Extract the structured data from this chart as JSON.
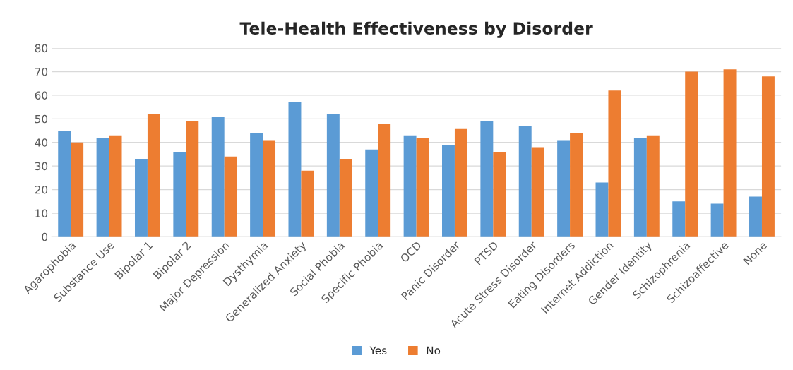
{
  "chart_data": {
    "type": "bar",
    "title": "Tele-Health Effectiveness by Disorder",
    "categories": [
      "Agarophobia",
      "Substance Use",
      "Bipolar 1",
      "Bipolar 2",
      "Major Depression",
      "Dysthymia",
      "Generalized Anxiety",
      "Social Phobia",
      "Specific Phobia",
      "OCD",
      "Panic Disorder",
      "PTSD",
      "Acute Stress Disorder",
      "Eating Disorders",
      "Internet Addiction",
      "Gender Identity",
      "Schizophrenia",
      "Schizoaffective",
      "None"
    ],
    "series": [
      {
        "name": "Yes",
        "color": "#5b9bd5",
        "values": [
          45,
          42,
          33,
          36,
          51,
          44,
          57,
          52,
          37,
          43,
          39,
          49,
          47,
          41,
          23,
          42,
          15,
          14,
          17
        ]
      },
      {
        "name": "No",
        "color": "#ed7d31",
        "values": [
          40,
          43,
          52,
          49,
          34,
          41,
          28,
          33,
          48,
          42,
          46,
          36,
          38,
          44,
          62,
          43,
          70,
          71,
          68
        ]
      }
    ],
    "ylim": [
      0,
      80
    ],
    "yticks": [
      0,
      10,
      20,
      30,
      40,
      50,
      60,
      70,
      80
    ],
    "grid": "y",
    "legend": "bottom"
  }
}
